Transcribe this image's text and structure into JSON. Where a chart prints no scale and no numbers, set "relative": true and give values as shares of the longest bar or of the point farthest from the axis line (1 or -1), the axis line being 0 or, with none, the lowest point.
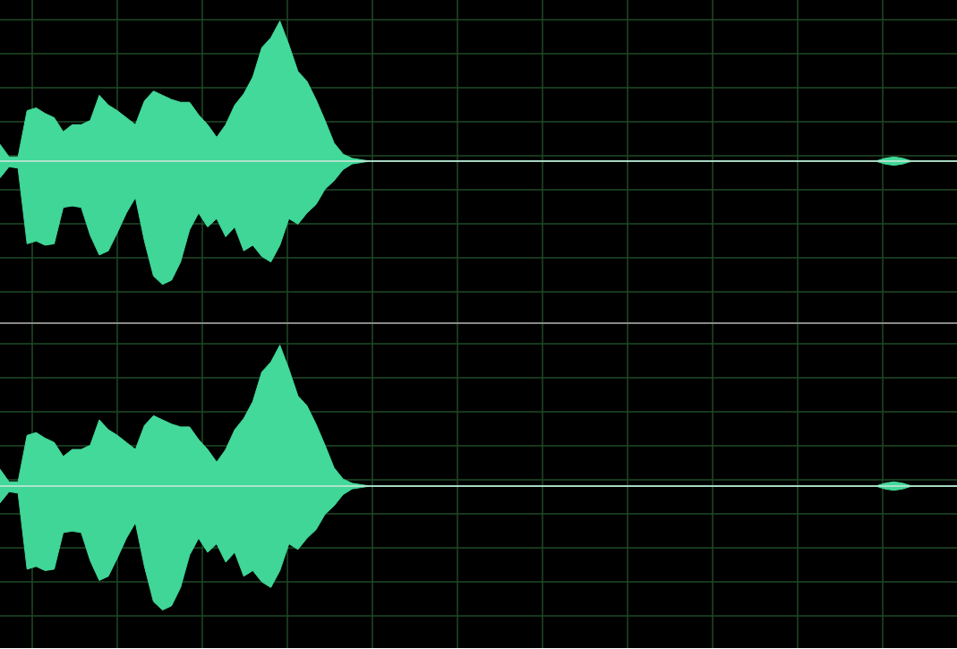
{
  "chart_data": [
    {
      "type": "area",
      "relative": true,
      "grid": true,
      "categories": [
        null,
        null,
        null,
        null,
        null,
        null,
        null,
        null,
        null,
        null,
        null,
        null,
        null,
        null,
        null,
        null,
        null,
        null,
        null,
        null,
        null,
        null,
        null,
        null,
        null,
        null,
        null,
        null,
        null,
        null,
        null,
        null,
        null,
        null,
        null,
        null,
        null,
        null,
        null,
        null,
        null,
        null,
        null,
        null,
        null,
        null,
        null,
        null,
        null,
        null,
        null,
        null,
        null,
        null,
        null,
        null,
        null,
        null,
        null,
        null,
        null,
        null,
        null,
        null,
        null,
        null,
        null,
        null,
        null,
        null,
        null,
        null,
        null,
        null,
        null,
        null,
        null,
        null,
        null,
        null,
        null,
        null,
        null,
        null,
        null,
        null,
        null,
        null,
        null,
        null,
        null,
        null,
        null,
        null,
        null,
        null,
        null,
        null,
        null,
        null,
        null,
        null,
        null,
        null,
        null,
        null,
        null
      ],
      "series": [
        {
          "color": "#43d99a",
          "values": [
            0.12,
            0.03,
            0.03,
            0.36,
            0.38,
            0.34,
            0.31,
            0.21,
            0.26,
            0.26,
            0.29,
            0.47,
            0.4,
            0.36,
            0.31,
            0.26,
            0.43,
            0.5,
            0.47,
            0.44,
            0.42,
            0.42,
            0.33,
            0.26,
            0.17,
            0.26,
            0.4,
            0.48,
            0.6,
            0.81,
            0.88,
            1,
            0.83,
            0.64,
            0.57,
            0.44,
            0.29,
            0.13,
            0.05,
            0.02,
            0.01,
            0,
            0,
            0,
            0,
            0,
            0,
            0,
            0,
            0,
            0,
            0,
            0,
            0,
            0,
            0,
            0,
            0,
            0,
            0,
            0,
            0,
            0,
            0,
            0,
            0,
            0,
            0,
            0,
            0,
            0,
            0,
            0,
            0,
            0,
            0,
            0,
            0,
            0,
            0,
            0,
            0,
            0,
            0,
            0,
            0,
            0,
            0,
            0,
            0,
            0,
            0,
            0,
            0,
            0,
            0,
            0,
            0,
            0.02,
            0.03,
            0.02,
            0,
            0,
            0,
            0,
            0,
            0
          ]
        },
        {
          "color": "#40d697",
          "values": [
            -0.12,
            -0.04,
            -0.05,
            -0.59,
            -0.57,
            -0.6,
            -0.59,
            -0.33,
            -0.32,
            -0.33,
            -0.53,
            -0.67,
            -0.64,
            -0.51,
            -0.37,
            -0.26,
            -0.57,
            -0.82,
            -0.88,
            -0.85,
            -0.72,
            -0.49,
            -0.37,
            -0.47,
            -0.41,
            -0.54,
            -0.47,
            -0.64,
            -0.6,
            -0.68,
            -0.72,
            -0.6,
            -0.41,
            -0.45,
            -0.37,
            -0.31,
            -0.2,
            -0.14,
            -0.06,
            -0.02,
            -0.01,
            0,
            0,
            0,
            0,
            0,
            0,
            0,
            0,
            0,
            0,
            0,
            0,
            0,
            0,
            0,
            0,
            0,
            0,
            0,
            0,
            0,
            0,
            0,
            0,
            0,
            0,
            0,
            0,
            0,
            0,
            0,
            0,
            0,
            0,
            0,
            0,
            0,
            0,
            0,
            0,
            0,
            0,
            0,
            0,
            0,
            0,
            0,
            0,
            0,
            0,
            0,
            0,
            0,
            0,
            0,
            0,
            0,
            -0.02,
            -0.03,
            -0.02,
            0,
            0,
            0,
            0,
            0,
            0
          ]
        }
      ]
    },
    {
      "type": "area",
      "relative": true,
      "grid": true,
      "categories": [
        null,
        null,
        null,
        null,
        null,
        null,
        null,
        null,
        null,
        null,
        null,
        null,
        null,
        null,
        null,
        null,
        null,
        null,
        null,
        null,
        null,
        null,
        null,
        null,
        null,
        null,
        null,
        null,
        null,
        null,
        null,
        null,
        null,
        null,
        null,
        null,
        null,
        null,
        null,
        null,
        null,
        null,
        null,
        null,
        null,
        null,
        null,
        null,
        null,
        null,
        null,
        null,
        null,
        null,
        null,
        null,
        null,
        null,
        null,
        null,
        null,
        null,
        null,
        null,
        null,
        null,
        null,
        null,
        null,
        null,
        null,
        null,
        null,
        null,
        null,
        null,
        null,
        null,
        null,
        null,
        null,
        null,
        null,
        null,
        null,
        null,
        null,
        null,
        null,
        null,
        null,
        null,
        null,
        null,
        null,
        null,
        null,
        null,
        null,
        null,
        null,
        null,
        null,
        null,
        null,
        null,
        null
      ],
      "series": [
        {
          "color": "#43d99a",
          "values": [
            0.12,
            0.03,
            0.03,
            0.36,
            0.38,
            0.34,
            0.31,
            0.21,
            0.26,
            0.26,
            0.29,
            0.47,
            0.4,
            0.36,
            0.31,
            0.26,
            0.43,
            0.5,
            0.47,
            0.44,
            0.42,
            0.42,
            0.33,
            0.26,
            0.17,
            0.26,
            0.4,
            0.48,
            0.6,
            0.81,
            0.88,
            1,
            0.83,
            0.64,
            0.57,
            0.44,
            0.29,
            0.13,
            0.05,
            0.02,
            0.01,
            0,
            0,
            0,
            0,
            0,
            0,
            0,
            0,
            0,
            0,
            0,
            0,
            0,
            0,
            0,
            0,
            0,
            0,
            0,
            0,
            0,
            0,
            0,
            0,
            0,
            0,
            0,
            0,
            0,
            0,
            0,
            0,
            0,
            0,
            0,
            0,
            0,
            0,
            0,
            0,
            0,
            0,
            0,
            0,
            0,
            0,
            0,
            0,
            0,
            0,
            0,
            0,
            0,
            0,
            0,
            0,
            0,
            0.02,
            0.03,
            0.02,
            0,
            0,
            0,
            0,
            0,
            0
          ]
        },
        {
          "color": "#40d697",
          "values": [
            -0.12,
            -0.04,
            -0.05,
            -0.59,
            -0.57,
            -0.6,
            -0.59,
            -0.33,
            -0.32,
            -0.33,
            -0.53,
            -0.67,
            -0.64,
            -0.51,
            -0.37,
            -0.26,
            -0.57,
            -0.82,
            -0.88,
            -0.85,
            -0.72,
            -0.49,
            -0.37,
            -0.47,
            -0.41,
            -0.54,
            -0.47,
            -0.64,
            -0.6,
            -0.68,
            -0.72,
            -0.6,
            -0.41,
            -0.45,
            -0.37,
            -0.31,
            -0.2,
            -0.14,
            -0.06,
            -0.02,
            -0.01,
            0,
            0,
            0,
            0,
            0,
            0,
            0,
            0,
            0,
            0,
            0,
            0,
            0,
            0,
            0,
            0,
            0,
            0,
            0,
            0,
            0,
            0,
            0,
            0,
            0,
            0,
            0,
            0,
            0,
            0,
            0,
            0,
            0,
            0,
            0,
            0,
            0,
            0,
            0,
            0,
            0,
            0,
            0,
            0,
            0,
            0,
            0,
            0,
            0,
            0,
            0,
            0,
            0,
            0,
            0,
            0,
            0,
            -0.02,
            -0.03,
            -0.02,
            0,
            0,
            0,
            0,
            0,
            0
          ]
        }
      ]
    }
  ]
}
